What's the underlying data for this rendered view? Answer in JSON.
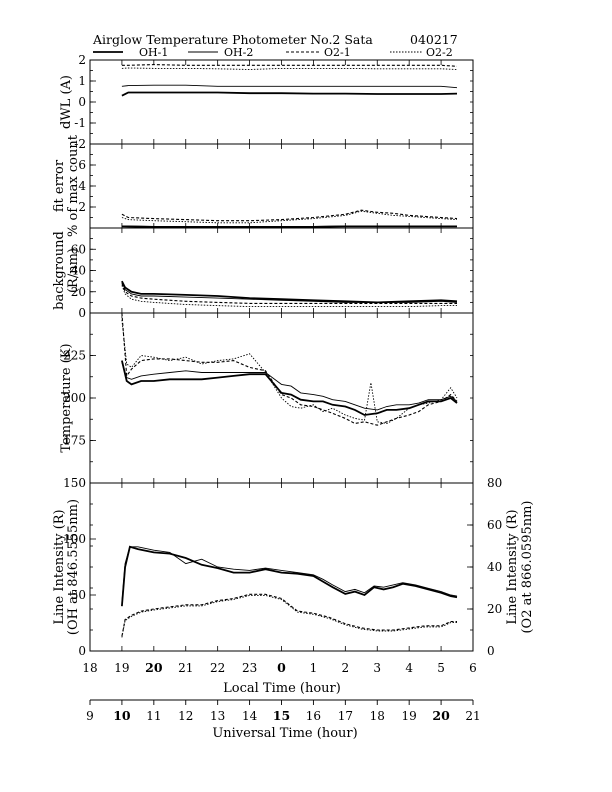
{
  "title": "Airglow Temperature Photometer No.2  Sata",
  "date_code": "040217",
  "legend": [
    {
      "label": "OH-1",
      "style": "solid-thick"
    },
    {
      "label": "OH-2",
      "style": "solid-thin"
    },
    {
      "label": "O2-1",
      "style": "dashed"
    },
    {
      "label": "O2-2",
      "style": "dotted"
    }
  ],
  "x_axes": {
    "local_time": {
      "label": "Local Time (hour)",
      "ticks": [
        "18",
        "19",
        "20",
        "21",
        "22",
        "23",
        "0",
        "1",
        "2",
        "3",
        "4",
        "5",
        "6"
      ]
    },
    "universal_time": {
      "label": "Universal Time (hour)",
      "ticks": [
        "9",
        "10",
        "11",
        "12",
        "13",
        "14",
        "15",
        "16",
        "17",
        "18",
        "19",
        "20",
        "21"
      ]
    }
  },
  "chart_data": [
    {
      "type": "line",
      "ylabel": "dWL (A)",
      "ylim": [
        -2,
        2
      ],
      "yticks": [
        "-2",
        "-1",
        "0",
        "1",
        "2"
      ],
      "x_unit": "local time (hour, continuous from 18)",
      "series": [
        {
          "name": "OH-1",
          "x": [
            19.0,
            19.2,
            20,
            21,
            22,
            23,
            24,
            25,
            26,
            27,
            28,
            29,
            29.5
          ],
          "y": [
            0.3,
            0.45,
            0.45,
            0.45,
            0.45,
            0.42,
            0.42,
            0.4,
            0.4,
            0.38,
            0.38,
            0.38,
            0.4
          ]
        },
        {
          "name": "OH-2",
          "x": [
            19.0,
            19.2,
            20,
            21,
            22,
            23,
            24,
            25,
            26,
            27,
            28,
            29,
            29.5
          ],
          "y": [
            0.75,
            0.78,
            0.8,
            0.8,
            0.75,
            0.75,
            0.75,
            0.75,
            0.75,
            0.75,
            0.75,
            0.75,
            0.68
          ]
        },
        {
          "name": "O2-1",
          "x": [
            19.0,
            19.2,
            20,
            21,
            22,
            23,
            24,
            25,
            26,
            27,
            28,
            29,
            29.5
          ],
          "y": [
            1.75,
            1.75,
            1.78,
            1.75,
            1.75,
            1.75,
            1.75,
            1.75,
            1.75,
            1.75,
            1.75,
            1.75,
            1.7
          ]
        },
        {
          "name": "O2-2",
          "x": [
            19.0,
            19.2,
            20,
            21,
            22,
            23,
            24,
            25,
            26,
            27,
            28,
            29,
            29.5
          ],
          "y": [
            1.6,
            1.62,
            1.6,
            1.6,
            1.58,
            1.55,
            1.6,
            1.6,
            1.6,
            1.58,
            1.58,
            1.58,
            1.55
          ]
        }
      ]
    },
    {
      "type": "line",
      "ylabel": "fit error",
      "ylabel2": "% of max count",
      "ylim": [
        0,
        8
      ],
      "yticks": [
        "2",
        "4",
        "6"
      ],
      "x_unit": "local time (hour, continuous from 18)",
      "series": [
        {
          "name": "OH-1",
          "x": [
            19.0,
            20,
            21,
            22,
            23,
            24,
            25,
            26,
            27,
            28,
            29,
            29.5
          ],
          "y": [
            0.15,
            0.1,
            0.1,
            0.1,
            0.1,
            0.1,
            0.1,
            0.15,
            0.15,
            0.15,
            0.15,
            0.15
          ]
        },
        {
          "name": "OH-2",
          "x": [
            19.0,
            20,
            21,
            22,
            23,
            24,
            25,
            26,
            27,
            28,
            29,
            29.5
          ],
          "y": [
            0.2,
            0.15,
            0.15,
            0.15,
            0.15,
            0.15,
            0.15,
            0.2,
            0.2,
            0.2,
            0.2,
            0.2
          ]
        },
        {
          "name": "O2-1",
          "x": [
            19.0,
            19.2,
            20,
            21,
            22,
            23,
            24,
            25,
            26,
            26.5,
            27,
            27.5,
            28,
            29,
            29.5
          ],
          "y": [
            1.3,
            1.0,
            0.9,
            0.8,
            0.7,
            0.7,
            0.8,
            1.0,
            1.3,
            1.7,
            1.5,
            1.4,
            1.2,
            1.0,
            0.9
          ]
        },
        {
          "name": "O2-2",
          "x": [
            19.0,
            19.2,
            20,
            21,
            22,
            23,
            24,
            25,
            26,
            26.5,
            27,
            27.5,
            28,
            29,
            29.5
          ],
          "y": [
            1.0,
            0.8,
            0.7,
            0.6,
            0.5,
            0.5,
            0.7,
            0.9,
            1.2,
            1.6,
            1.4,
            1.2,
            1.1,
            0.9,
            0.8
          ]
        }
      ]
    },
    {
      "type": "line",
      "ylabel": "background",
      "ylabel2": "(R/nm)",
      "ylim": [
        0,
        80
      ],
      "yticks": [
        "0",
        "20",
        "40",
        "60"
      ],
      "x_unit": "local time (hour, continuous from 18)",
      "series": [
        {
          "name": "OH-1",
          "x": [
            19.0,
            19.1,
            19.3,
            19.6,
            20,
            21,
            22,
            23,
            24,
            25,
            26,
            27,
            28,
            29,
            29.5
          ],
          "y": [
            30,
            24,
            20,
            18,
            18,
            17,
            16,
            14,
            13,
            12,
            11,
            10,
            11,
            12,
            11
          ]
        },
        {
          "name": "OH-2",
          "x": [
            19.0,
            19.1,
            19.3,
            19.6,
            20,
            21,
            22,
            23,
            24,
            25,
            26,
            27,
            28,
            29,
            29.5
          ],
          "y": [
            29,
            22,
            18,
            16,
            16,
            15,
            14,
            13,
            12,
            11,
            10,
            10,
            10,
            11,
            10
          ]
        },
        {
          "name": "O2-1",
          "x": [
            19.0,
            19.1,
            19.3,
            19.6,
            20,
            21,
            22,
            23,
            24,
            25,
            26,
            27,
            28,
            29,
            29.5
          ],
          "y": [
            28,
            20,
            16,
            14,
            13,
            11,
            10,
            9,
            9,
            9,
            9,
            9,
            9,
            9,
            9
          ]
        },
        {
          "name": "O2-2",
          "x": [
            19.0,
            19.1,
            19.3,
            19.6,
            20,
            21,
            22,
            23,
            24,
            25,
            26,
            27,
            28,
            29,
            29.5
          ],
          "y": [
            26,
            18,
            13,
            11,
            10,
            8,
            7,
            6,
            6,
            6,
            6,
            6,
            6,
            7,
            7
          ]
        }
      ]
    },
    {
      "type": "line",
      "ylabel": "Temperature (K)",
      "ylim": [
        150,
        250
      ],
      "yticks": [
        "175",
        "200",
        "225"
      ],
      "x_unit": "local time (hour, continuous from 18)",
      "series": [
        {
          "name": "OH-1",
          "x": [
            19.0,
            19.15,
            19.3,
            19.6,
            20,
            20.5,
            21,
            21.5,
            22,
            22.5,
            23,
            23.5,
            24,
            24.3,
            24.6,
            25,
            25.3,
            25.6,
            26,
            26.3,
            26.6,
            27,
            27.3,
            27.6,
            28,
            28.3,
            28.6,
            29,
            29.3,
            29.5
          ],
          "y": [
            222,
            210,
            208,
            210,
            210,
            211,
            211,
            211,
            212,
            213,
            214,
            214,
            203,
            202,
            199,
            198,
            198,
            196,
            195,
            193,
            190,
            191,
            193,
            193,
            194,
            196,
            198,
            198,
            200,
            197
          ]
        },
        {
          "name": "OH-2",
          "x": [
            19.0,
            19.15,
            19.3,
            19.6,
            20,
            20.5,
            21,
            21.5,
            22,
            22.5,
            23,
            23.5,
            24,
            24.3,
            24.6,
            25,
            25.3,
            25.6,
            26,
            26.3,
            26.6,
            27,
            27.3,
            27.6,
            28,
            28.3,
            28.6,
            29,
            29.3,
            29.5
          ],
          "y": [
            221,
            212,
            211,
            213,
            214,
            215,
            216,
            215,
            215,
            215,
            215,
            215,
            208,
            207,
            203,
            202,
            201,
            199,
            198,
            196,
            194,
            193,
            195,
            196,
            196,
            197,
            199,
            199,
            201,
            198
          ]
        },
        {
          "name": "O2-1",
          "x": [
            19.0,
            19.15,
            19.3,
            19.6,
            20,
            20.5,
            21,
            21.5,
            22,
            22.5,
            23,
            23.5,
            24,
            24.3,
            24.6,
            25,
            25.3,
            25.6,
            26,
            26.3,
            26.6,
            27,
            27.3,
            27.6,
            28,
            28.3,
            28.6,
            29,
            29.3,
            29.5
          ],
          "y": [
            250,
            213,
            217,
            222,
            223,
            223,
            222,
            221,
            221,
            222,
            218,
            216,
            202,
            200,
            196,
            195,
            193,
            191,
            188,
            185,
            186,
            184,
            186,
            188,
            190,
            192,
            196,
            198,
            202,
            198
          ]
        },
        {
          "name": "O2-2",
          "x": [
            19.0,
            19.15,
            19.3,
            19.6,
            20,
            20.5,
            21,
            21.5,
            22,
            22.5,
            23,
            23.5,
            24,
            24.3,
            24.6,
            25,
            25.3,
            25.6,
            26,
            26.3,
            26.6,
            26.8,
            27,
            27.3,
            27.6,
            28,
            28.3,
            28.6,
            29,
            29.3,
            29.5
          ],
          "y": [
            246,
            220,
            218,
            225,
            224,
            222,
            224,
            220,
            222,
            223,
            226,
            215,
            200,
            195,
            194,
            196,
            192,
            194,
            190,
            188,
            187,
            209,
            186,
            185,
            188,
            194,
            196,
            197,
            199,
            206,
            200
          ]
        }
      ]
    },
    {
      "type": "line",
      "ylabel": "Line Intensity (R)",
      "ylabel2": "(OH at 846.5555nm)",
      "right_ylabel": "Line Intensity (R)",
      "right_ylabel2": "(O2 at 866.0595nm)",
      "ylim": [
        0,
        150
      ],
      "yticks": [
        "0",
        "50",
        "100",
        "150"
      ],
      "right_ylim": [
        0,
        80
      ],
      "right_yticks": [
        "0",
        "20",
        "40",
        "60",
        "80"
      ],
      "x_unit": "local time (hour, continuous from 18)",
      "series": [
        {
          "name": "OH-1",
          "axis": "left",
          "x": [
            19.0,
            19.1,
            19.25,
            19.5,
            20,
            20.5,
            21,
            21.5,
            22,
            22.5,
            23,
            23.5,
            24,
            24.5,
            25,
            25.3,
            25.6,
            26,
            26.3,
            26.6,
            26.9,
            27.2,
            27.5,
            27.8,
            28.2,
            28.6,
            29,
            29.3,
            29.5
          ],
          "y": [
            40,
            75,
            93,
            91,
            88,
            87,
            83,
            77,
            74,
            70,
            70,
            73,
            70,
            69,
            67,
            62,
            57,
            51,
            53,
            50,
            57,
            55,
            57,
            60,
            58,
            55,
            52,
            49,
            48
          ]
        },
        {
          "name": "OH-2",
          "axis": "left",
          "x": [
            19.0,
            19.1,
            19.25,
            19.5,
            20,
            20.5,
            21,
            21.5,
            22,
            22.5,
            23,
            23.5,
            24,
            24.5,
            25,
            25.3,
            25.6,
            26,
            26.3,
            26.6,
            26.9,
            27.2,
            27.5,
            27.8,
            28.2,
            28.6,
            29,
            29.3,
            29.5
          ],
          "y": [
            43,
            78,
            93,
            93,
            90,
            88,
            78,
            82,
            75,
            73,
            72,
            74,
            72,
            70,
            68,
            64,
            59,
            53,
            55,
            52,
            58,
            57,
            59,
            61,
            59,
            56,
            53,
            50,
            49
          ]
        },
        {
          "name": "O2-1",
          "axis": "right",
          "x": [
            19.0,
            19.1,
            19.3,
            19.6,
            20,
            20.5,
            21,
            21.5,
            22,
            22.5,
            23,
            23.5,
            24,
            24.5,
            25,
            25.5,
            26,
            26.5,
            27,
            27.5,
            28,
            28.5,
            29,
            29.3,
            29.5
          ],
          "y": [
            7,
            15,
            17,
            19,
            20,
            21,
            22,
            22,
            24,
            25,
            27,
            27,
            25,
            19,
            18,
            16,
            13,
            11,
            10,
            10,
            11,
            12,
            12,
            14,
            14
          ]
        },
        {
          "name": "O2-2",
          "axis": "right",
          "x": [
            19.0,
            19.1,
            19.3,
            19.6,
            20,
            20.5,
            21,
            21.5,
            22,
            22.5,
            23,
            23.5,
            24,
            24.5,
            25,
            25.5,
            26,
            26.5,
            27,
            27.5,
            28,
            28.5,
            29,
            29.3,
            29.5
          ],
          "y": [
            6.5,
            14.5,
            16.5,
            18.5,
            19.5,
            20.5,
            21.5,
            21.5,
            23.5,
            24.5,
            26.5,
            26.5,
            24.5,
            18.5,
            17.5,
            15.5,
            12.5,
            10.5,
            9.5,
            9.5,
            10.5,
            11.5,
            11.5,
            13.5,
            13.5
          ]
        }
      ]
    }
  ]
}
